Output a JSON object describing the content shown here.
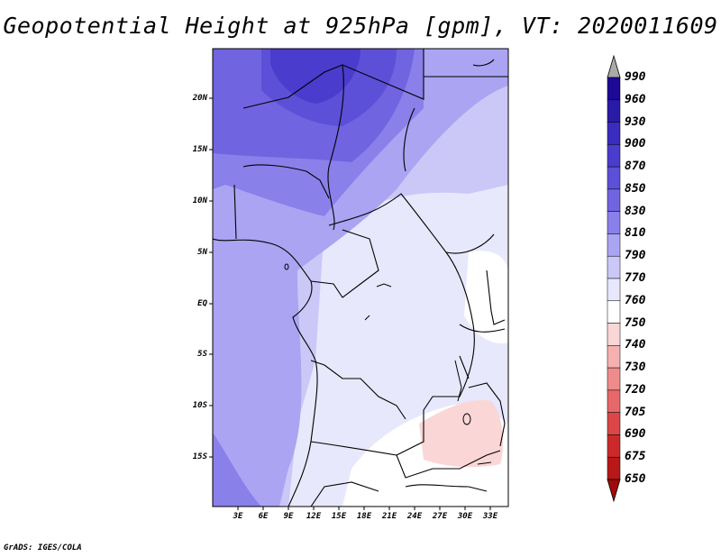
{
  "title": "Geopotential Height at 925hPa [gpm], VT: 2020011609",
  "credit": "GrADS: IGES/COLA",
  "map": {
    "latitude_ticks": [
      "20N",
      "15N",
      "10N",
      "5N",
      "EQ",
      "5S",
      "10S",
      "15S"
    ],
    "longitude_ticks": [
      "3E",
      "6E",
      "9E",
      "12E",
      "15E",
      "18E",
      "21E",
      "24E",
      "27E",
      "30E",
      "33E"
    ]
  },
  "colorbar": {
    "levels": [
      "990",
      "960",
      "930",
      "900",
      "870",
      "850",
      "830",
      "810",
      "790",
      "770",
      "760",
      "750",
      "740",
      "730",
      "720",
      "705",
      "690",
      "675",
      "650"
    ],
    "colors": [
      "#aaaaaa",
      "#1e0896",
      "#2a1aa8",
      "#3a2cbe",
      "#4a3ccc",
      "#5c50d8",
      "#7064e0",
      "#8a80ea",
      "#aaa4f2",
      "#cbc8f8",
      "#e8e8fd",
      "#ffffff",
      "#fbd6d6",
      "#f5b0b0",
      "#ee8c8c",
      "#e66868",
      "#dc4646",
      "#cc2a2a",
      "#b81818",
      "#a00a0a"
    ]
  }
}
